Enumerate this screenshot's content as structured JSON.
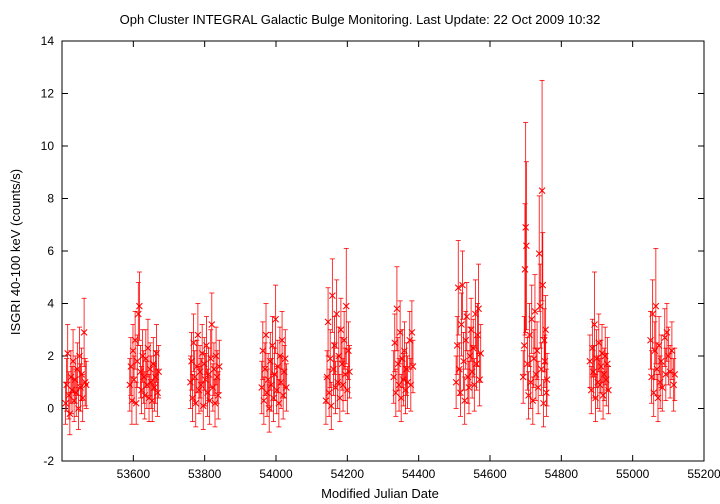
{
  "chart_data": {
    "type": "scatter",
    "title": "Oph Cluster   INTEGRAL Galactic Bulge Monitoring.  Last Update: 22 Oct 2009 10:32",
    "xlabel": "Modified Julian Date",
    "ylabel": "ISGRI 40-100 keV (counts/s)",
    "xlim": [
      53400,
      55200
    ],
    "ylim": [
      -2,
      14
    ],
    "xticks": [
      53600,
      53800,
      54000,
      54200,
      54400,
      54600,
      54800,
      55000,
      55200
    ],
    "yticks": [
      -2,
      0,
      2,
      4,
      6,
      8,
      10,
      12,
      14
    ],
    "grid": false,
    "series_color": "#ff0000",
    "series": [
      {
        "points": [
          [
            53410,
            0.2,
            0.8
          ],
          [
            53413,
            0.9,
            1.0
          ],
          [
            53416,
            2.1,
            1.1
          ],
          [
            53419,
            0.5,
            0.9
          ],
          [
            53422,
            -0.2,
            0.8
          ],
          [
            53425,
            1.2,
            1.0
          ],
          [
            53428,
            0.7,
            0.9
          ],
          [
            53431,
            1.8,
            1.2
          ],
          [
            53434,
            0.3,
            0.8
          ],
          [
            53437,
            1.1,
            0.9
          ],
          [
            53440,
            0.6,
            0.9
          ],
          [
            53443,
            1.5,
            1.0
          ],
          [
            53446,
            0.0,
            0.8
          ],
          [
            53449,
            2.0,
            1.1
          ],
          [
            53452,
            0.8,
            0.9
          ],
          [
            53455,
            1.3,
            1.0
          ],
          [
            53458,
            0.4,
            0.9
          ],
          [
            53462,
            2.9,
            1.3
          ],
          [
            53465,
            1.0,
            0.9
          ],
          [
            53468,
            0.9,
            0.9
          ],
          [
            53590,
            0.9,
            1.0
          ],
          [
            53593,
            1.6,
            1.1
          ],
          [
            53596,
            0.3,
            0.9
          ],
          [
            53599,
            2.2,
            1.0
          ],
          [
            53602,
            1.1,
            0.9
          ],
          [
            53605,
            2.6,
            1.1
          ],
          [
            53608,
            0.2,
            0.8
          ],
          [
            53611,
            1.8,
            1.0
          ],
          [
            53614,
            3.6,
            1.2
          ],
          [
            53617,
            3.9,
            1.3
          ],
          [
            53620,
            1.4,
            1.0
          ],
          [
            53623,
            0.7,
            0.9
          ],
          [
            53626,
            2.0,
            1.0
          ],
          [
            53629,
            1.2,
            1.0
          ],
          [
            53632,
            0.5,
            0.9
          ],
          [
            53635,
            1.9,
            1.1
          ],
          [
            53638,
            0.9,
            0.9
          ],
          [
            53641,
            2.3,
            1.1
          ],
          [
            53644,
            0.4,
            0.9
          ],
          [
            53647,
            1.5,
            1.0
          ],
          [
            53650,
            1.0,
            1.0
          ],
          [
            53653,
            0.3,
            0.8
          ],
          [
            53656,
            1.7,
            1.0
          ],
          [
            53659,
            0.8,
            0.9
          ],
          [
            53662,
            1.2,
            1.0
          ],
          [
            53665,
            2.1,
            1.1
          ],
          [
            53668,
            0.6,
            0.9
          ],
          [
            53671,
            1.4,
            1.0
          ],
          [
            53760,
            1.0,
            1.0
          ],
          [
            53763,
            1.8,
            1.1
          ],
          [
            53766,
            0.4,
            0.9
          ],
          [
            53769,
            2.5,
            1.1
          ],
          [
            53772,
            1.2,
            1.0
          ],
          [
            53775,
            0.2,
            0.9
          ],
          [
            53778,
            1.6,
            1.0
          ],
          [
            53781,
            2.8,
            1.2
          ],
          [
            53784,
            0.7,
            0.9
          ],
          [
            53787,
            1.4,
            1.0
          ],
          [
            53790,
            0.9,
            1.0
          ],
          [
            53793,
            2.1,
            1.1
          ],
          [
            53796,
            0.1,
            0.9
          ],
          [
            53799,
            1.7,
            1.0
          ],
          [
            53802,
            1.1,
            1.0
          ],
          [
            53805,
            2.4,
            1.1
          ],
          [
            53808,
            0.6,
            0.9
          ],
          [
            53811,
            1.3,
            1.0
          ],
          [
            53814,
            0.3,
            0.9
          ],
          [
            53817,
            1.9,
            1.1
          ],
          [
            53820,
            3.2,
            1.2
          ],
          [
            53823,
            0.8,
            0.9
          ],
          [
            53826,
            1.5,
            1.0
          ],
          [
            53829,
            0.2,
            0.9
          ],
          [
            53832,
            2.0,
            1.1
          ],
          [
            53835,
            1.2,
            1.0
          ],
          [
            53838,
            0.5,
            0.9
          ],
          [
            53841,
            1.6,
            1.0
          ],
          [
            53960,
            0.8,
            1.0
          ],
          [
            53963,
            2.2,
            1.1
          ],
          [
            53966,
            0.3,
            0.9
          ],
          [
            53969,
            1.5,
            1.0
          ],
          [
            53972,
            2.8,
            1.2
          ],
          [
            53975,
            0.6,
            0.9
          ],
          [
            53978,
            1.1,
            1.0
          ],
          [
            53981,
            0.0,
            0.9
          ],
          [
            53984,
            1.8,
            1.1
          ],
          [
            53987,
            0.9,
            1.0
          ],
          [
            53990,
            2.4,
            1.1
          ],
          [
            53993,
            0.4,
            0.9
          ],
          [
            53996,
            1.3,
            1.0
          ],
          [
            53999,
            3.4,
            1.3
          ],
          [
            54002,
            0.7,
            0.9
          ],
          [
            54005,
            1.6,
            1.0
          ],
          [
            54008,
            0.2,
            0.9
          ],
          [
            54011,
            2.0,
            1.1
          ],
          [
            54014,
            1.0,
            1.0
          ],
          [
            54017,
            2.6,
            1.1
          ],
          [
            54020,
            0.5,
            0.9
          ],
          [
            54023,
            1.4,
            1.0
          ],
          [
            54026,
            1.9,
            1.1
          ],
          [
            54029,
            0.8,
            0.9
          ],
          [
            54140,
            0.3,
            0.9
          ],
          [
            54143,
            1.2,
            1.0
          ],
          [
            54146,
            3.3,
            1.3
          ],
          [
            54149,
            0.6,
            0.9
          ],
          [
            54152,
            1.9,
            1.1
          ],
          [
            54155,
            0.1,
            0.9
          ],
          [
            54158,
            4.3,
            1.4
          ],
          [
            54161,
            1.5,
            1.0
          ],
          [
            54164,
            2.4,
            1.1
          ],
          [
            54167,
            0.8,
            1.0
          ],
          [
            54170,
            3.6,
            1.3
          ],
          [
            54173,
            1.0,
            1.0
          ],
          [
            54176,
            2.0,
            1.1
          ],
          [
            54179,
            0.4,
            0.9
          ],
          [
            54182,
            3.0,
            1.2
          ],
          [
            54185,
            1.7,
            1.0
          ],
          [
            54188,
            0.9,
            1.0
          ],
          [
            54191,
            2.6,
            1.1
          ],
          [
            54194,
            1.3,
            1.0
          ],
          [
            54197,
            3.9,
            2.2
          ],
          [
            54200,
            0.7,
            0.9
          ],
          [
            54203,
            2.2,
            1.1
          ],
          [
            54206,
            1.4,
            1.0
          ],
          [
            54330,
            1.2,
            1.0
          ],
          [
            54333,
            2.5,
            1.1
          ],
          [
            54336,
            0.6,
            0.9
          ],
          [
            54339,
            3.8,
            1.6
          ],
          [
            54342,
            1.7,
            1.0
          ],
          [
            54345,
            0.9,
            1.0
          ],
          [
            54348,
            2.9,
            1.2
          ],
          [
            54351,
            0.4,
            0.9
          ],
          [
            54354,
            1.9,
            1.1
          ],
          [
            54357,
            1.1,
            1.0
          ],
          [
            54360,
            2.2,
            1.1
          ],
          [
            54363,
            0.7,
            0.9
          ],
          [
            54366,
            1.5,
            1.0
          ],
          [
            54369,
            1.0,
            1.0
          ],
          [
            54375,
            2.6,
            1.1
          ],
          [
            54378,
            0.9,
            1.0
          ],
          [
            54381,
            2.9,
            1.2
          ],
          [
            54384,
            1.6,
            1.0
          ],
          [
            54505,
            1.0,
            1.0
          ],
          [
            54508,
            2.4,
            1.1
          ],
          [
            54511,
            4.6,
            1.8
          ],
          [
            54514,
            1.5,
            1.0
          ],
          [
            54517,
            0.6,
            0.9
          ],
          [
            54520,
            3.2,
            1.2
          ],
          [
            54523,
            4.7,
            1.3
          ],
          [
            54526,
            1.8,
            1.1
          ],
          [
            54529,
            0.3,
            0.9
          ],
          [
            54532,
            2.6,
            1.1
          ],
          [
            54535,
            3.5,
            1.3
          ],
          [
            54538,
            1.2,
            1.0
          ],
          [
            54541,
            0.8,
            1.0
          ],
          [
            54544,
            2.0,
            1.1
          ],
          [
            54547,
            3.0,
            1.2
          ],
          [
            54550,
            1.4,
            1.0
          ],
          [
            54553,
            2.3,
            1.1
          ],
          [
            54556,
            0.9,
            1.0
          ],
          [
            54559,
            3.6,
            1.3
          ],
          [
            54562,
            1.7,
            1.0
          ],
          [
            54565,
            2.8,
            1.2
          ],
          [
            54568,
            3.8,
            1.7
          ],
          [
            54571,
            1.1,
            1.0
          ],
          [
            54574,
            2.1,
            1.1
          ],
          [
            54693,
            1.2,
            1.0
          ],
          [
            54696,
            2.4,
            1.1
          ],
          [
            54698,
            5.3,
            2.5
          ],
          [
            54700,
            6.9,
            4.0
          ],
          [
            54702,
            6.2,
            3.2
          ],
          [
            54705,
            1.7,
            1.0
          ],
          [
            54708,
            0.5,
            0.9
          ],
          [
            54711,
            2.8,
            1.2
          ],
          [
            54714,
            1.0,
            1.0
          ],
          [
            54717,
            3.4,
            1.3
          ],
          [
            54720,
            0.3,
            0.9
          ],
          [
            54723,
            1.9,
            1.1
          ],
          [
            54726,
            3.7,
            1.4
          ],
          [
            54729,
            1.3,
            1.0
          ],
          [
            54732,
            2.2,
            1.1
          ],
          [
            54735,
            0.8,
            1.0
          ],
          [
            54738,
            5.9,
            2.2
          ],
          [
            54741,
            3.9,
            1.6
          ],
          [
            54744,
            1.5,
            1.0
          ],
          [
            54746,
            8.3,
            4.2
          ],
          [
            54748,
            4.7,
            2.0
          ],
          [
            54750,
            0.2,
            0.9
          ],
          [
            54752,
            2.6,
            1.2
          ],
          [
            54754,
            1.8,
            1.0
          ],
          [
            54756,
            3.0,
            1.3
          ],
          [
            54758,
            0.6,
            0.9
          ],
          [
            54760,
            1.1,
            1.0
          ],
          [
            54880,
            1.8,
            1.0
          ],
          [
            54884,
            0.7,
            0.9
          ],
          [
            54887,
            2.3,
            1.1
          ],
          [
            54890,
            1.4,
            1.0
          ],
          [
            54893,
            3.2,
            2.0
          ],
          [
            54896,
            0.4,
            0.9
          ],
          [
            54899,
            1.9,
            1.1
          ],
          [
            54902,
            1.0,
            1.0
          ],
          [
            54905,
            2.5,
            1.1
          ],
          [
            54908,
            0.9,
            1.0
          ],
          [
            54911,
            1.6,
            1.0
          ],
          [
            54914,
            2.1,
            1.1
          ],
          [
            54917,
            0.5,
            0.9
          ],
          [
            54920,
            1.3,
            1.0
          ],
          [
            54923,
            2.0,
            1.1
          ],
          [
            54926,
            1.1,
            1.0
          ],
          [
            54929,
            1.7,
            1.0
          ],
          [
            54932,
            0.7,
            0.9
          ],
          [
            55050,
            2.6,
            1.1
          ],
          [
            55053,
            1.2,
            1.0
          ],
          [
            55056,
            3.6,
            1.3
          ],
          [
            55059,
            0.6,
            0.9
          ],
          [
            55062,
            2.2,
            1.1
          ],
          [
            55065,
            3.9,
            2.2
          ],
          [
            55068,
            1.5,
            1.0
          ],
          [
            55071,
            0.4,
            0.9
          ],
          [
            55074,
            2.4,
            1.1
          ],
          [
            55077,
            1.0,
            1.0
          ],
          [
            55080,
            1.8,
            1.0
          ],
          [
            55083,
            0.8,
            0.9
          ],
          [
            55090,
            2.7,
            1.1
          ],
          [
            55093,
            1.3,
            1.0
          ],
          [
            55096,
            2.9,
            1.1
          ],
          [
            55100,
            2.0,
            1.1
          ],
          [
            55105,
            1.4,
            1.0
          ],
          [
            55110,
            2.2,
            1.1
          ],
          [
            55115,
            0.9,
            1.0
          ],
          [
            55118,
            1.3,
            1.0
          ]
        ]
      }
    ]
  }
}
